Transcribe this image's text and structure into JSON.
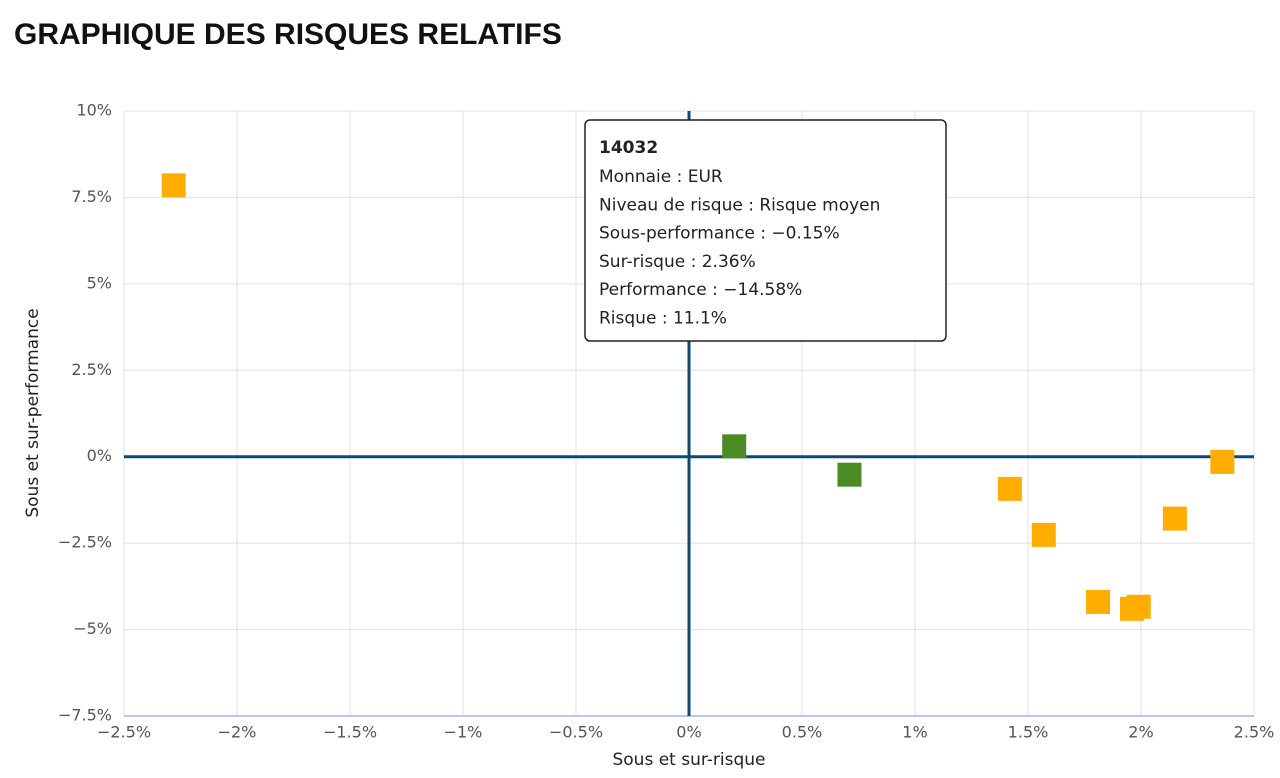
{
  "chart_data": {
    "type": "scatter",
    "title": "GRAPHIQUE DES RISQUES RELATIFS",
    "xlabel": "Sous et sur-risque",
    "ylabel": "Sous et sur-performance",
    "xlim": [
      -2.5,
      2.5
    ],
    "ylim": [
      -7.5,
      10
    ],
    "xticks": [
      {
        "value": -2.5,
        "label": "−2.5%"
      },
      {
        "value": -2,
        "label": "−2%"
      },
      {
        "value": -1.5,
        "label": "−1.5%"
      },
      {
        "value": -1,
        "label": "−1%"
      },
      {
        "value": -0.5,
        "label": "−0.5%"
      },
      {
        "value": 0,
        "label": "0%"
      },
      {
        "value": 0.5,
        "label": "0.5%"
      },
      {
        "value": 1,
        "label": "1%"
      },
      {
        "value": 1.5,
        "label": "1.5%"
      },
      {
        "value": 2,
        "label": "2%"
      },
      {
        "value": 2.5,
        "label": "2.5%"
      }
    ],
    "yticks": [
      {
        "value": -7.5,
        "label": "−7.5%"
      },
      {
        "value": -5,
        "label": "−5%"
      },
      {
        "value": -2.5,
        "label": "−2.5%"
      },
      {
        "value": 0,
        "label": "0%"
      },
      {
        "value": 2.5,
        "label": "2.5%"
      },
      {
        "value": 5,
        "label": "5%"
      },
      {
        "value": 7.5,
        "label": "7.5%"
      },
      {
        "value": 10,
        "label": "10%"
      }
    ],
    "grid": true,
    "series": [
      {
        "color": "#ffad00",
        "x": [
          -2.28,
          1.42,
          1.57,
          1.81,
          1.96,
          1.99,
          2.15,
          2.36
        ],
        "values": [
          7.85,
          -0.93,
          -2.26,
          -4.2,
          -4.4,
          -4.34,
          -1.79,
          -0.15
        ]
      },
      {
        "color": "#4a8c23",
        "x": [
          0.2,
          0.71
        ],
        "values": [
          0.3,
          -0.52
        ]
      }
    ],
    "tooltip": {
      "title": "14032",
      "lines": [
        "Monnaie : EUR",
        "Niveau de risque : Risque moyen",
        "Sous-performance : −0.15%",
        "Sur-risque : 2.36%",
        "Performance : −14.58%",
        "Risque : 11.1%"
      ]
    }
  }
}
